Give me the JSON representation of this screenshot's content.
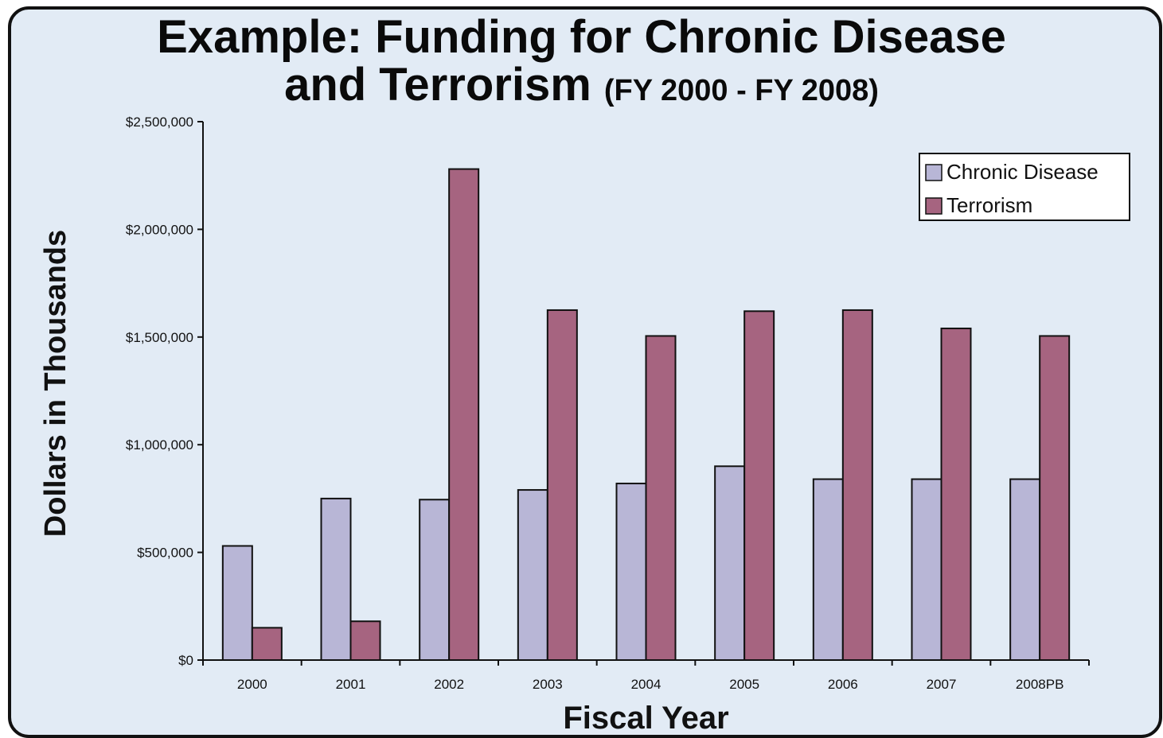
{
  "chart_data": {
    "type": "bar",
    "title_line1": "Example: Funding for Chronic Disease",
    "title_line2_main": "and Terrorism",
    "title_line2_sub": "(FY 2000 - FY 2008)",
    "xlabel": "Fiscal Year",
    "ylabel": "Dollars in Thousands",
    "ylim": [
      0,
      2500000
    ],
    "yticks": [
      {
        "value": 0,
        "label": "$0"
      },
      {
        "value": 500000,
        "label": "$500,000"
      },
      {
        "value": 1000000,
        "label": "$1,000,000"
      },
      {
        "value": 1500000,
        "label": "$1,500,000"
      },
      {
        "value": 2000000,
        "label": "$2,000,000"
      },
      {
        "value": 2500000,
        "label": "$2,500,000"
      }
    ],
    "categories": [
      "2000",
      "2001",
      "2002",
      "2003",
      "2004",
      "2005",
      "2006",
      "2007",
      "2008PB"
    ],
    "series": [
      {
        "name": "Chronic Disease",
        "color": "#b8b6d6",
        "values": [
          530000,
          750000,
          745000,
          790000,
          820000,
          900000,
          840000,
          840000,
          840000
        ]
      },
      {
        "name": "Terrorism",
        "color": "#a66480",
        "values": [
          150000,
          180000,
          2280000,
          1625000,
          1505000,
          1620000,
          1625000,
          1540000,
          1505000
        ]
      }
    ],
    "legend_position": "top-right",
    "grid": false
  }
}
